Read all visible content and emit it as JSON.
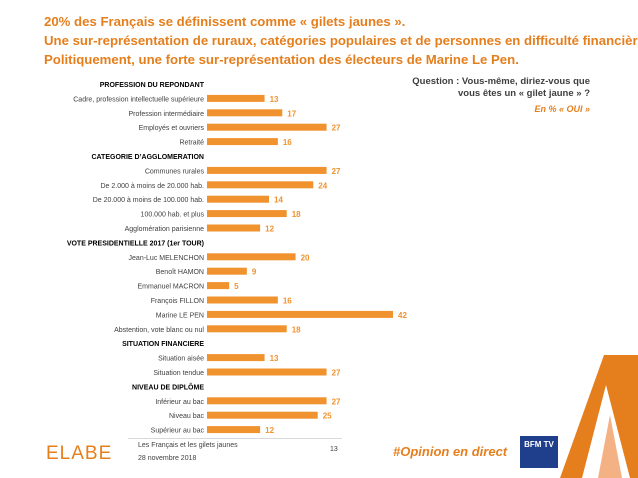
{
  "header": {
    "title_line1": "20% des Français se définissent comme « gilets jaunes ».",
    "title_line2": "Une sur-représentation de ruraux, catégories populaires et de personnes en difficulté financière.",
    "title_line3": "Politiquement, une forte sur-représentation des électeurs de Marine Le Pen."
  },
  "question": {
    "text": "Question : Vous-même, diriez-vous que vous êtes un « gilet jaune » ?",
    "note": "En % « OUI »"
  },
  "colors": {
    "accent": "#e57f1e",
    "bar": "#f0922e",
    "text": "#404040",
    "brand_blue": "#1f3e8c"
  },
  "chart_data": {
    "type": "bar",
    "orientation": "horizontal",
    "unit": "%",
    "xlim": [
      0,
      42
    ],
    "grid": false,
    "groups": [
      {
        "label": "PROFESSION DU REPONDANT",
        "categories": [
          "Cadre, profession intellectuelle supérieure",
          "Profession intermédiaire",
          "Employés et ouvriers",
          "Retraité"
        ],
        "values": [
          13,
          17,
          27,
          16
        ]
      },
      {
        "label": "CATEGORIE D’AGGLOMERATION",
        "categories": [
          "Communes rurales",
          "De 2.000 à moins de 20.000 hab.",
          "De 20.000 à moins de 100.000 hab.",
          "100.000 hab. et plus",
          "Agglomération parisienne"
        ],
        "values": [
          27,
          24,
          14,
          18,
          12
        ]
      },
      {
        "label": "VOTE PRESIDENTIELLE 2017 (1er TOUR)",
        "categories": [
          "Jean-Luc MELENCHON",
          "Benoît HAMON",
          "Emmanuel MACRON",
          "François FILLON",
          "Marine LE PEN",
          "Abstention, vote blanc ou nul"
        ],
        "values": [
          20,
          9,
          5,
          16,
          42,
          18
        ]
      },
      {
        "label": "SITUATION FINANCIERE",
        "categories": [
          "Situation aisée",
          "Situation tendue"
        ],
        "values": [
          13,
          27
        ]
      },
      {
        "label": "NIVEAU DE DIPLÔME",
        "categories": [
          "Inférieur au bac",
          "Niveau bac",
          "Supérieur au bac"
        ],
        "values": [
          27,
          25,
          12
        ]
      }
    ]
  },
  "footer": {
    "logo": "ELABE",
    "study": "Les Français et les gilets jaunes",
    "date": "28 novembre 2018",
    "page": "13",
    "hashtag": "#Opinion en direct",
    "partner_logo": "BFM TV"
  }
}
